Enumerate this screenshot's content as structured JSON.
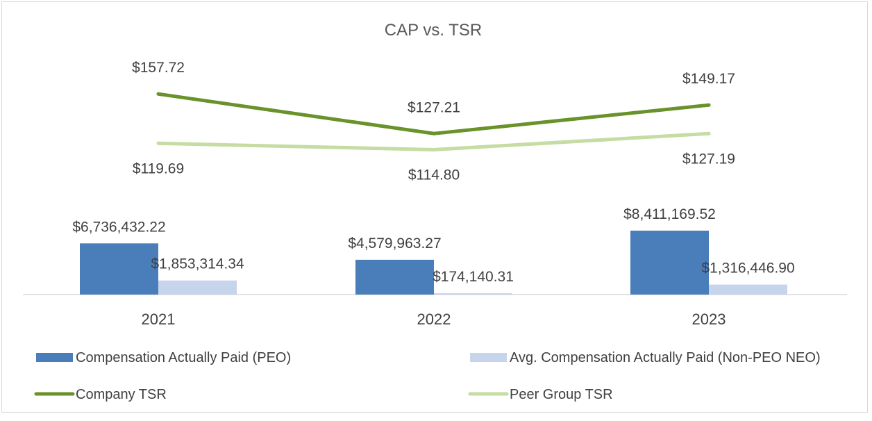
{
  "chart_data": {
    "type": "bar",
    "title": "CAP vs. TSR",
    "categories": [
      "2021",
      "2022",
      "2023"
    ],
    "series": [
      {
        "name": "Compensation Actually Paid (PEO)",
        "kind": "bar",
        "color": "#4a7ebb",
        "values": [
          6736432.22,
          4579963.27,
          8411169.52
        ],
        "labels": [
          "$6,736,432.22",
          "$4,579,963.27",
          "$8,411,169.52"
        ]
      },
      {
        "name": "Avg. Compensation Actually Paid (Non-PEO NEO)",
        "kind": "bar",
        "color": "#c6d5eb",
        "values": [
          1853314.34,
          174140.31,
          1316446.9
        ],
        "labels": [
          "$1,853,314.34",
          "$174,140.31",
          "$1,316,446.90"
        ]
      },
      {
        "name": "Company TSR",
        "kind": "line",
        "color": "#6a922a",
        "values": [
          157.72,
          127.21,
          149.17
        ],
        "labels": [
          "$157.72",
          "$127.21",
          "$149.17"
        ]
      },
      {
        "name": "Peer Group TSR",
        "kind": "line",
        "color": "#c5dca2",
        "values": [
          119.69,
          114.8,
          127.19
        ],
        "labels": [
          "$119.69",
          "$114.80",
          "$127.19"
        ]
      }
    ],
    "grid": false,
    "legend_position": "bottom"
  }
}
